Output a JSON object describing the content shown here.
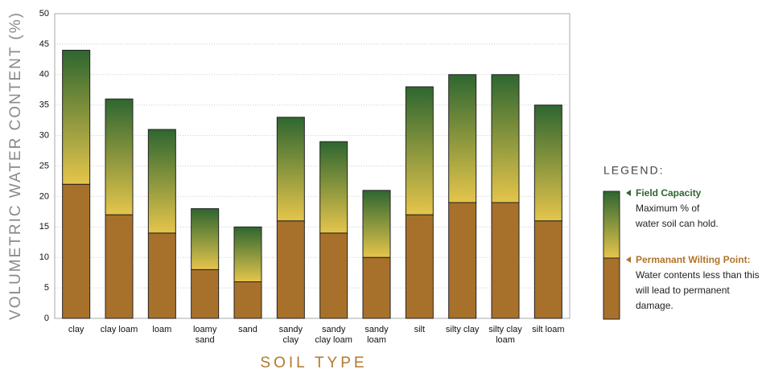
{
  "chart_data": {
    "type": "stacked_bar",
    "xlabel": "SOIL TYPE",
    "ylabel": "VOLUMETRIC WATER CONTENT (%)",
    "categories": [
      "clay",
      "clay loam",
      "loam",
      "loamy\nsand",
      "sand",
      "sandy\nclay",
      "sandy\nclay loam",
      "sandy\nloam",
      "silt",
      "silty clay",
      "silty clay\nloam",
      "silt loam"
    ],
    "series": [
      {
        "name": "Permanant Wilting Point:",
        "description": "Water contents less than this will lead to permanent damage.",
        "color": "#a8712b",
        "values": [
          22,
          17,
          14,
          8,
          6,
          16,
          14,
          10,
          17,
          19,
          19,
          16
        ]
      },
      {
        "name": "Field Capacity",
        "description": "Maximum % of water soil can hold.",
        "color": "#2e6630",
        "values": [
          22,
          19,
          17,
          10,
          9,
          17,
          15,
          11,
          21,
          21,
          21,
          19
        ]
      }
    ],
    "legend_title": "LEGEND:",
    "ylim": [
      0,
      50
    ],
    "yticks": [
      0,
      5,
      10,
      15,
      20,
      25,
      30,
      35,
      40,
      45,
      50
    ],
    "grid": true
  }
}
